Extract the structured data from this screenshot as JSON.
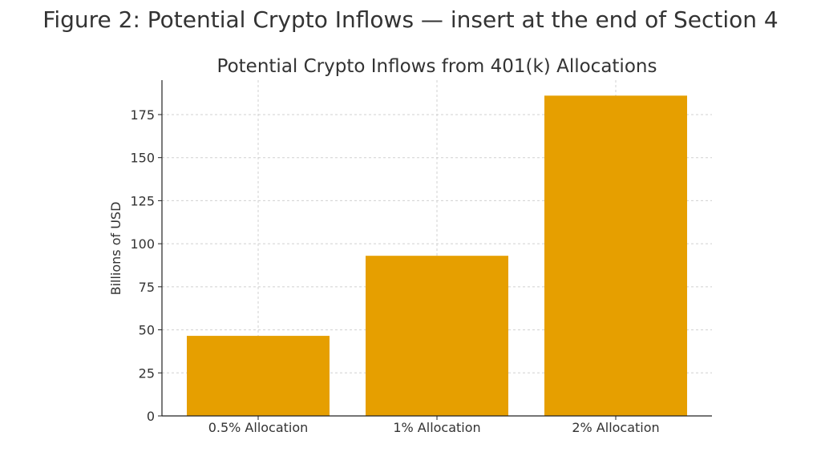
{
  "figure": {
    "caption": "Figure 2: Potential Crypto Inflows — insert at the end of Section 4"
  },
  "colors": {
    "bar": "#E69F00",
    "grid": "#d0d0d0",
    "axis": "#222222"
  },
  "chart_data": {
    "type": "bar",
    "title": "Potential Crypto Inflows from 401(k) Allocations",
    "xlabel": "",
    "ylabel": "Billions of USD",
    "categories": [
      "0.5% Allocation",
      "1% Allocation",
      "2% Allocation"
    ],
    "values": [
      46.5,
      93,
      186
    ],
    "ylim": [
      0,
      195
    ],
    "yticks": [
      0,
      25,
      50,
      75,
      100,
      125,
      150,
      175
    ],
    "grid": true,
    "legend": "none"
  }
}
